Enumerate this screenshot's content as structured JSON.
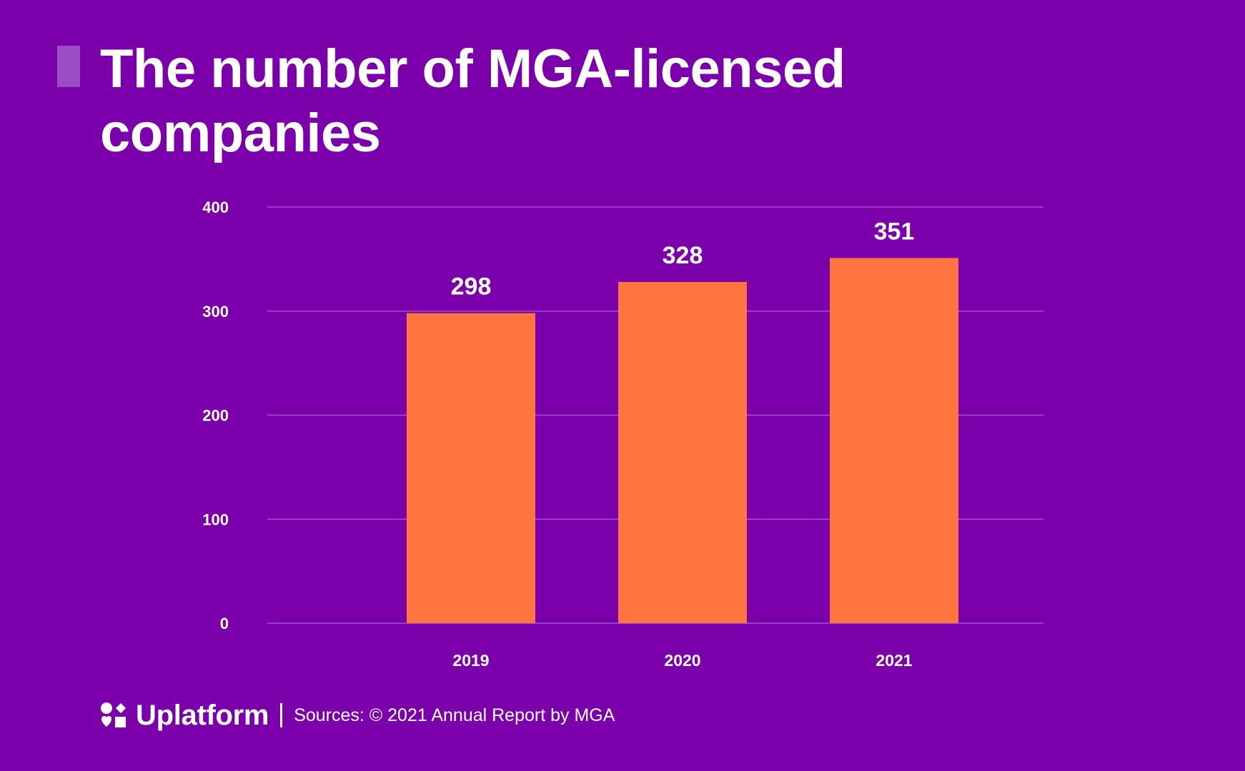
{
  "colors": {
    "background": "#7B00AC",
    "bar": "#FF7540",
    "grid": "#A352C9",
    "text": "#FFFFFF",
    "accent": "#9B4DC4"
  },
  "footer": {
    "brand": "Uplatform",
    "logo_icon": "uplatform-logo-icon",
    "source": "Sources: © 2021 Annual Report by MGA"
  },
  "chart_data": {
    "type": "bar",
    "title": "The number of MGA-licensed companies",
    "categories": [
      "2019",
      "2020",
      "2021"
    ],
    "values": [
      298,
      328,
      351
    ],
    "data_labels": [
      "298",
      "328",
      "351"
    ],
    "xlabel": "",
    "ylabel": "",
    "ylim": [
      0,
      400
    ],
    "yticks": [
      0,
      100,
      200,
      300,
      400
    ],
    "grid": true,
    "legend": "none"
  }
}
